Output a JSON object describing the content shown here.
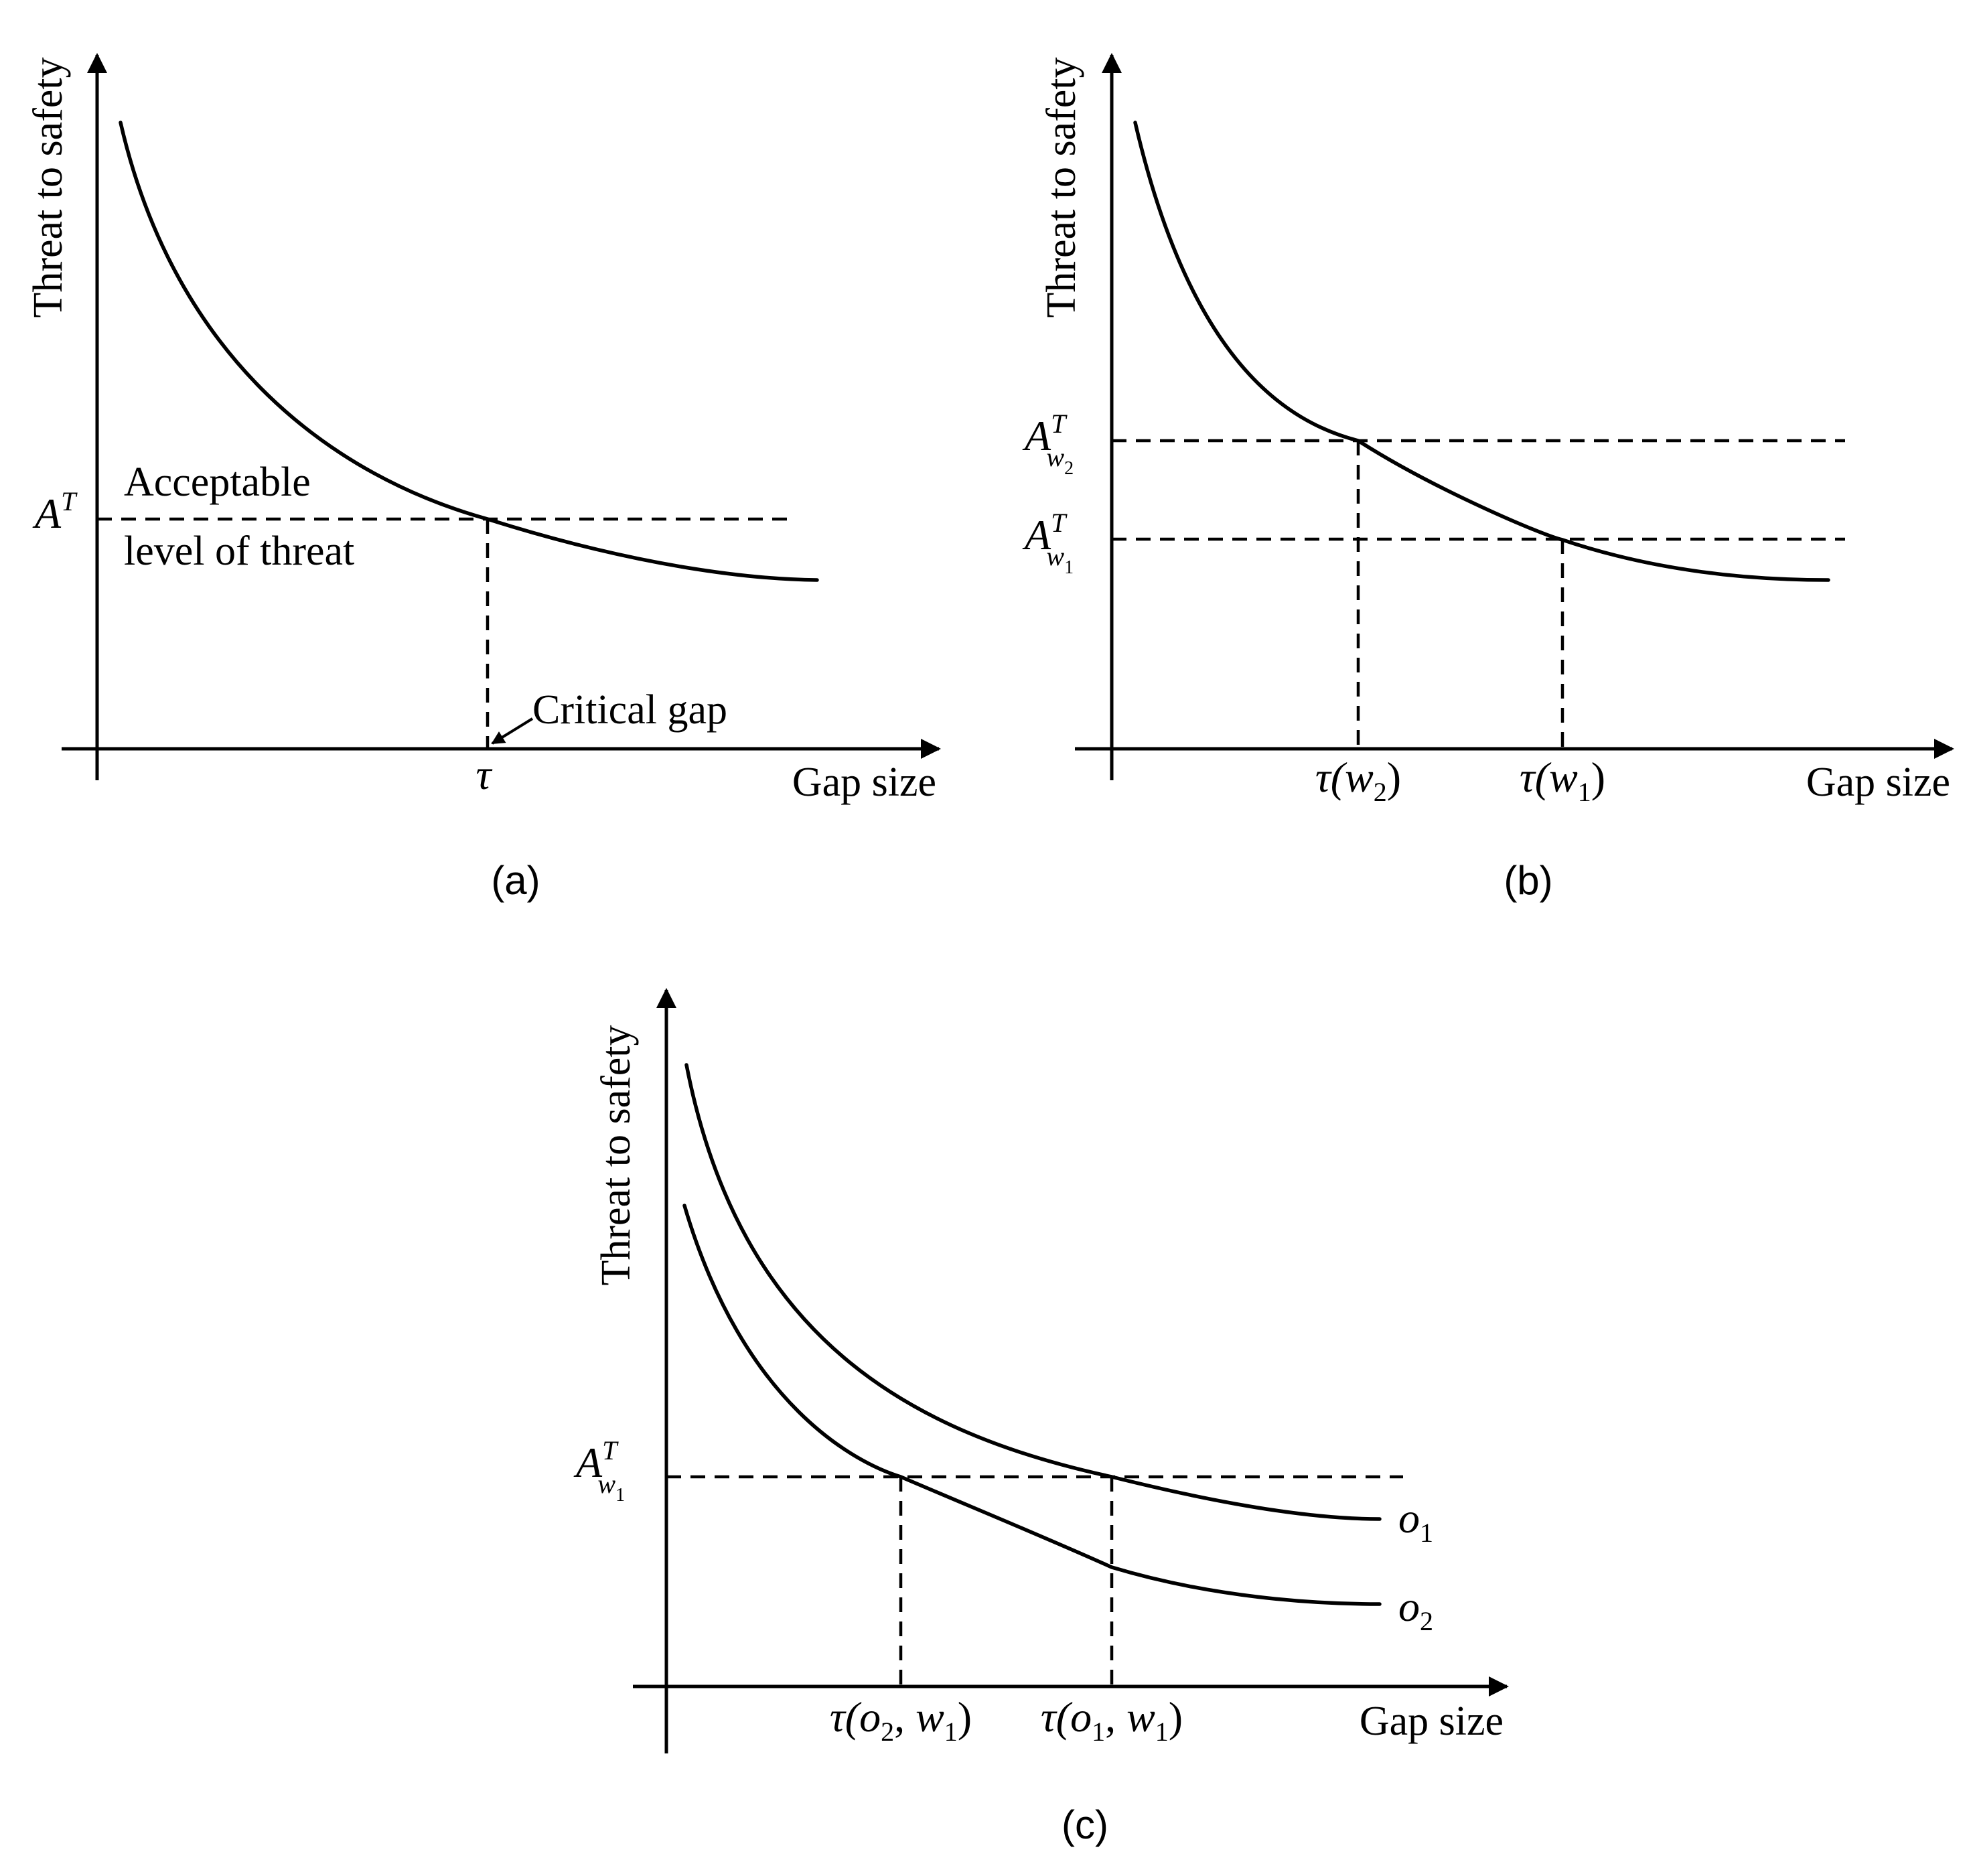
{
  "panels": [
    {
      "caption": "(a)",
      "y_axis_label": "Threat to safety",
      "x_axis_label": "Gap size",
      "curves": [
        {
          "name": "threat-curve"
        }
      ],
      "threshold": {
        "symbol": "A",
        "superscript": "T",
        "note_line1": "Acceptable",
        "note_line2": "level of threat"
      },
      "critical": {
        "symbol": "τ",
        "annotation": "Critical gap"
      }
    },
    {
      "caption": "(b)",
      "y_axis_label": "Threat to safety",
      "x_axis_label": "Gap size",
      "thresholds": [
        {
          "symbol": "A",
          "superscript": "T",
          "subscript": "w",
          "subsub": "2"
        },
        {
          "symbol": "A",
          "superscript": "T",
          "subscript": "w",
          "subsub": "1"
        }
      ],
      "critical_gaps": [
        {
          "prefix": "τ(",
          "var": "w",
          "sub": "2",
          "suffix": ")"
        },
        {
          "prefix": "τ(",
          "var": "w",
          "sub": "1",
          "suffix": ")"
        }
      ]
    },
    {
      "caption": "(c)",
      "y_axis_label": "Threat to safety",
      "x_axis_label": "Gap size",
      "threshold": {
        "symbol": "A",
        "superscript": "T",
        "subscript": "w",
        "subsub": "1"
      },
      "curves": [
        {
          "var": "o",
          "sub": "1"
        },
        {
          "var": "o",
          "sub": "2"
        }
      ],
      "critical_gaps": [
        {
          "prefix": "τ(",
          "var1": "o",
          "sub1": "2",
          "sep": ", ",
          "var2": "w",
          "sub2": "1",
          "suffix": ")"
        },
        {
          "prefix": "τ(",
          "var1": "o",
          "sub1": "1",
          "sep": ", ",
          "var2": "w",
          "sub2": "1",
          "suffix": ")"
        }
      ]
    }
  ]
}
